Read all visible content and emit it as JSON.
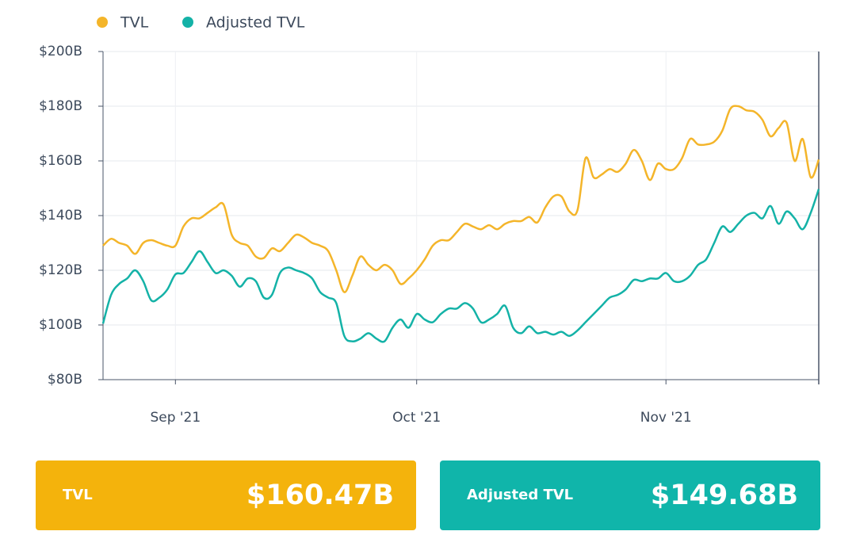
{
  "chart_data": {
    "type": "line",
    "x": [
      0,
      1,
      2,
      3,
      4,
      5,
      6,
      7,
      8,
      9,
      10,
      11,
      12,
      13,
      14,
      15,
      16,
      17,
      18,
      19,
      20,
      21,
      22,
      23,
      24,
      25,
      26,
      27,
      28,
      29,
      30,
      31,
      32,
      33,
      34,
      35,
      36,
      37,
      38,
      39,
      40,
      41,
      42,
      43,
      44,
      45,
      46,
      47,
      48,
      49,
      50,
      51,
      52,
      53,
      54,
      55,
      56,
      57,
      58,
      59,
      60,
      61,
      62,
      63,
      64,
      65,
      66,
      67,
      68,
      69,
      70,
      71,
      72,
      73,
      74,
      75,
      76,
      77,
      78,
      79,
      80,
      81,
      82,
      83,
      84,
      85,
      86,
      87,
      88,
      89
    ],
    "xlim": [
      0,
      89
    ],
    "xticks": [
      {
        "value": 9,
        "label": "Sep '21"
      },
      {
        "value": 39,
        "label": "Oct '21"
      },
      {
        "value": 70,
        "label": "Nov '21"
      }
    ],
    "ylim": [
      80,
      200
    ],
    "yticks": [
      {
        "value": 80,
        "label": "$80B"
      },
      {
        "value": 100,
        "label": "$100B"
      },
      {
        "value": 120,
        "label": "$120B"
      },
      {
        "value": 140,
        "label": "$140B"
      },
      {
        "value": 160,
        "label": "$160B"
      },
      {
        "value": 180,
        "label": "$180B"
      },
      {
        "value": 200,
        "label": "$200B"
      }
    ],
    "grid": true,
    "legend": "top-left",
    "series": [
      {
        "name": "TVL",
        "color": "#f4b52a",
        "values": [
          129,
          131.5,
          130,
          129,
          126,
          130,
          131,
          130,
          129,
          129,
          136,
          139,
          139,
          141,
          143,
          144,
          133,
          130,
          129,
          125,
          124.5,
          128,
          127,
          130,
          133,
          132,
          130,
          129,
          127,
          120,
          112,
          118,
          125,
          122,
          120,
          122,
          120,
          115,
          117,
          120,
          124,
          129,
          131,
          131,
          134,
          137,
          136,
          135,
          136.5,
          135,
          137,
          138,
          138,
          139.5,
          137.5,
          143,
          147,
          147,
          141.5,
          142,
          161,
          154,
          155,
          157,
          156,
          159,
          164,
          160,
          153,
          159,
          157,
          157,
          161,
          168,
          166,
          166,
          167,
          171,
          179,
          180,
          178.5,
          178,
          175,
          169,
          172,
          174,
          160,
          168,
          154,
          160.47
        ]
      },
      {
        "name": "Adjusted TVL",
        "color": "#14b2a7",
        "values": [
          100.5,
          111,
          115,
          117,
          120,
          116,
          109,
          110,
          113,
          118.5,
          119,
          123,
          127,
          123,
          119,
          120,
          118,
          114,
          117,
          116,
          110,
          111,
          119,
          121,
          120,
          119,
          117,
          112,
          110,
          108,
          96,
          94,
          95,
          97,
          95,
          94,
          99,
          102,
          99,
          104,
          102,
          101,
          104,
          106,
          106,
          108,
          106,
          101,
          102,
          104,
          107,
          99,
          97,
          99.5,
          97,
          97.5,
          96.5,
          97.5,
          96,
          98,
          101,
          104,
          107,
          110,
          111,
          113,
          116.5,
          116,
          117,
          117,
          119,
          116,
          116,
          118,
          122,
          124,
          130,
          136,
          134,
          137,
          140,
          141,
          139,
          143.5,
          137,
          141.5,
          139,
          135,
          141,
          149.68
        ]
      }
    ],
    "summary_cards": [
      {
        "value": 160.47,
        "label": "$160.47B",
        "color": "#f4b30c"
      },
      {
        "value": 149.68,
        "label": "$149.68B",
        "color": "#10b5aa"
      }
    ]
  }
}
